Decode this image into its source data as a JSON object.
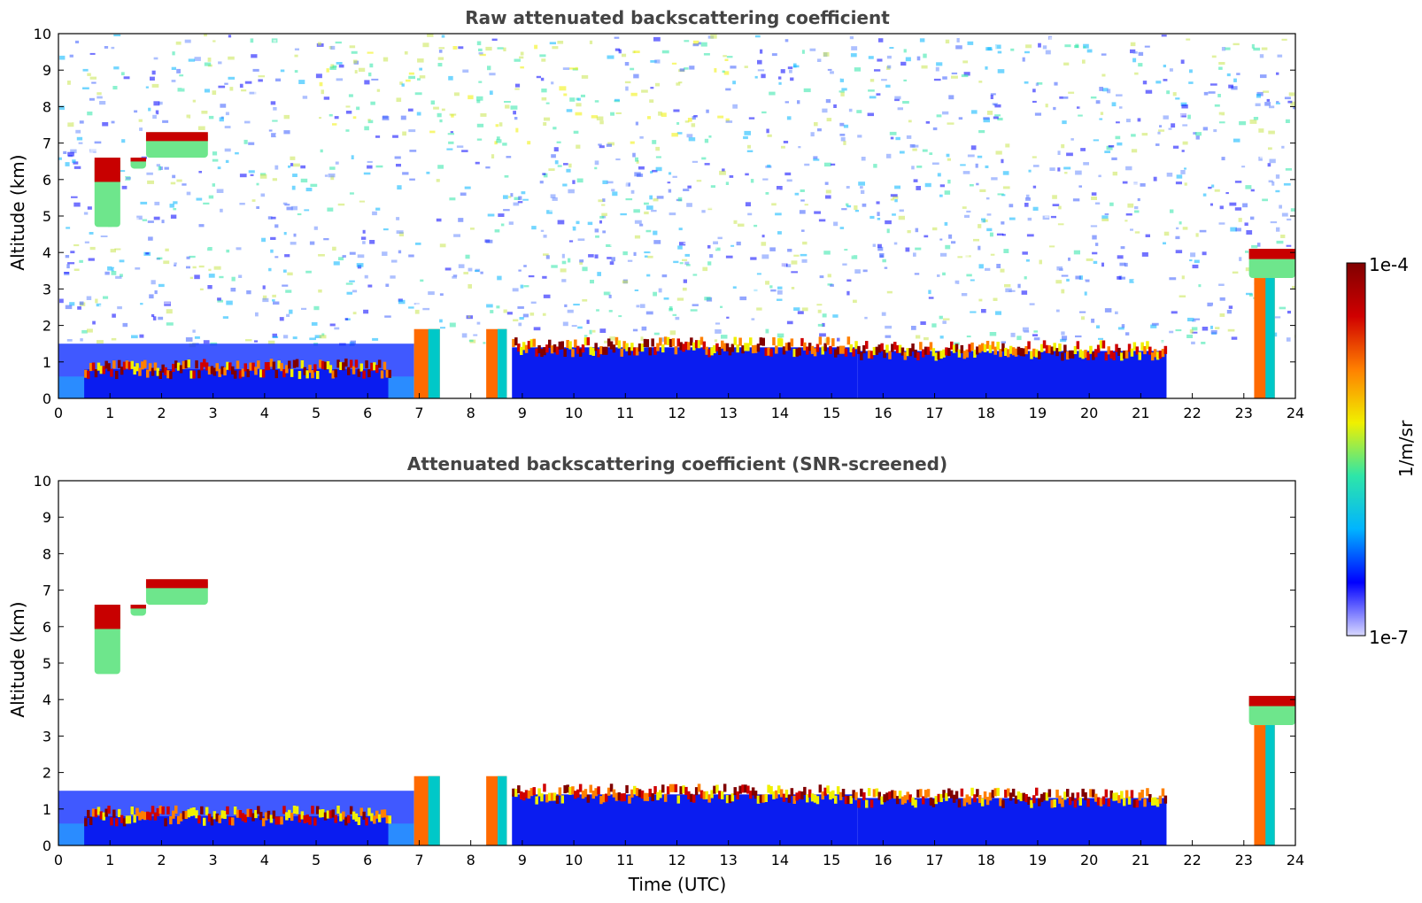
{
  "chart_data": [
    {
      "type": "heatmap",
      "title": "Raw attenuated backscattering coefficient",
      "xlabel": "",
      "ylabel": "Altitude (km)",
      "xlim": [
        0,
        24
      ],
      "ylim": [
        0,
        10
      ],
      "x_ticks": [
        0,
        1,
        2,
        3,
        4,
        5,
        6,
        7,
        8,
        9,
        10,
        11,
        12,
        13,
        14,
        15,
        16,
        17,
        18,
        19,
        20,
        21,
        22,
        23,
        24
      ],
      "y_ticks": [
        0,
        1,
        2,
        3,
        4,
        5,
        6,
        7,
        8,
        9,
        10
      ],
      "z_unit": "1/m/sr",
      "z_range": [
        "1e-7",
        "1e-4"
      ],
      "z_scale": "log",
      "background": "noisy",
      "layers": [
        {
          "kind": "aerosol_layer",
          "x_start": 0,
          "x_end": 6.9,
          "top_km": 1.5
        },
        {
          "kind": "cloud_base",
          "x_start": 0.5,
          "x_end": 6.4,
          "y_km": 0.8
        },
        {
          "kind": "elevated_cloud",
          "x_start": 0.7,
          "x_end": 1.2,
          "y_bottom_km": 4.7,
          "y_top_km": 6.6
        },
        {
          "kind": "elevated_cloud",
          "x_start": 1.7,
          "x_end": 2.9,
          "y_bottom_km": 6.6,
          "y_top_km": 7.3
        },
        {
          "kind": "elevated_cloud",
          "x_start": 1.4,
          "x_end": 1.7,
          "y_bottom_km": 6.3,
          "y_top_km": 6.6
        },
        {
          "kind": "thick_cloud",
          "x_start": 6.9,
          "x_end": 7.4,
          "y_bottom_km": 0,
          "y_top_km": 1.9
        },
        {
          "kind": "thick_cloud",
          "x_start": 8.3,
          "x_end": 8.7,
          "y_bottom_km": 0,
          "y_top_km": 1.9
        },
        {
          "kind": "cloud_base",
          "x_start": 8.8,
          "x_end": 15.5,
          "y_km": 1.4
        },
        {
          "kind": "cloud_base",
          "x_start": 15.5,
          "x_end": 21.5,
          "y_km": 1.3
        },
        {
          "kind": "elevated_cloud",
          "x_start": 23.1,
          "x_end": 24,
          "y_bottom_km": 3.3,
          "y_top_km": 4.1
        },
        {
          "kind": "thick_cloud",
          "x_start": 23.2,
          "x_end": 23.6,
          "y_bottom_km": 0,
          "y_top_km": 3.3
        }
      ]
    },
    {
      "type": "heatmap",
      "title": "Attenuated backscattering coefficient (SNR-screened)",
      "xlabel": "Time (UTC)",
      "ylabel": "Altitude (km)",
      "xlim": [
        0,
        24
      ],
      "ylim": [
        0,
        10
      ],
      "x_ticks": [
        0,
        1,
        2,
        3,
        4,
        5,
        6,
        7,
        8,
        9,
        10,
        11,
        12,
        13,
        14,
        15,
        16,
        17,
        18,
        19,
        20,
        21,
        22,
        23,
        24
      ],
      "y_ticks": [
        0,
        1,
        2,
        3,
        4,
        5,
        6,
        7,
        8,
        9,
        10
      ],
      "z_unit": "1/m/sr",
      "z_range": [
        "1e-7",
        "1e-4"
      ],
      "z_scale": "log",
      "background": "screened",
      "layers": [
        {
          "kind": "aerosol_layer",
          "x_start": 0,
          "x_end": 6.9,
          "top_km": 1.5
        },
        {
          "kind": "cloud_base",
          "x_start": 0.5,
          "x_end": 6.4,
          "y_km": 0.8
        },
        {
          "kind": "elevated_cloud",
          "x_start": 0.7,
          "x_end": 1.2,
          "y_bottom_km": 4.7,
          "y_top_km": 6.6
        },
        {
          "kind": "elevated_cloud",
          "x_start": 1.7,
          "x_end": 2.9,
          "y_bottom_km": 6.6,
          "y_top_km": 7.3
        },
        {
          "kind": "elevated_cloud",
          "x_start": 1.4,
          "x_end": 1.7,
          "y_bottom_km": 6.3,
          "y_top_km": 6.6
        },
        {
          "kind": "thick_cloud",
          "x_start": 6.9,
          "x_end": 7.4,
          "y_bottom_km": 0,
          "y_top_km": 1.9
        },
        {
          "kind": "thick_cloud",
          "x_start": 8.3,
          "x_end": 8.7,
          "y_bottom_km": 0,
          "y_top_km": 1.9
        },
        {
          "kind": "cloud_base",
          "x_start": 8.8,
          "x_end": 15.5,
          "y_km": 1.4
        },
        {
          "kind": "cloud_base",
          "x_start": 15.5,
          "x_end": 21.5,
          "y_km": 1.3
        },
        {
          "kind": "elevated_cloud",
          "x_start": 23.1,
          "x_end": 24,
          "y_bottom_km": 3.3,
          "y_top_km": 4.1
        },
        {
          "kind": "thick_cloud",
          "x_start": 23.2,
          "x_end": 23.6,
          "y_bottom_km": 0,
          "y_top_km": 3.3
        }
      ]
    }
  ],
  "colorbar": {
    "max_label": "1e-4",
    "min_label": "1e-7",
    "unit_label": "1/m/sr",
    "colormap": "jet",
    "colors": [
      "#d8d8ff",
      "#0000ff",
      "#00b4ff",
      "#2ee6a8",
      "#f0f000",
      "#ff8000",
      "#d00000",
      "#800000"
    ]
  }
}
